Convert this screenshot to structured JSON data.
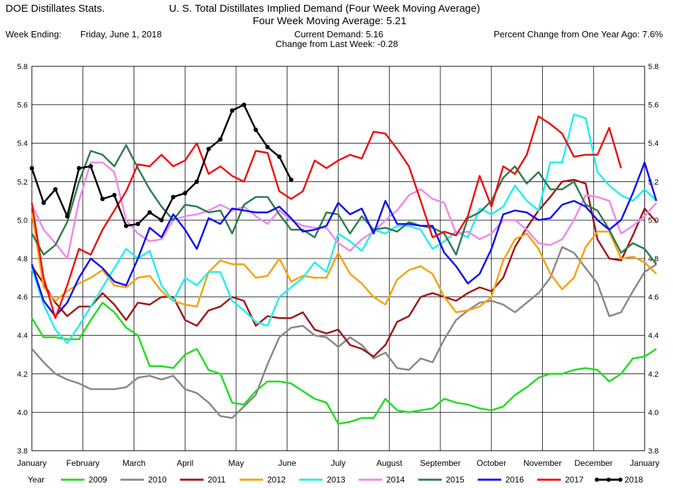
{
  "header": {
    "app_name": "DOE Distillates Stats.",
    "title_line1": "U. S. Total Distillates Implied Demand  (Four Week Moving Average)",
    "title_line2": "Four Week Moving Average:  5.21",
    "week_ending_label": "Week Ending:",
    "week_ending_value": "Friday, June 1, 2018",
    "current_demand": "Current Demand:  5.16",
    "change_last_week": "Change from Last Week: -0.28",
    "pct_change": "Percent Change from One Year Ago:  7.6%"
  },
  "chart_data": {
    "type": "line",
    "title": "U. S. Total Distillates Implied Demand  (Four Week Moving Average)",
    "xlabel": "",
    "ylabel": "",
    "ylim": [
      3.8,
      5.8
    ],
    "y_ticks": [
      "3.8",
      "4.0",
      "4.2",
      "4.4",
      "4.6",
      "4.8",
      "5.0",
      "5.2",
      "5.4",
      "5.6",
      "5.8"
    ],
    "x_ticks": [
      "January",
      "February",
      "March",
      "April",
      "May",
      "June",
      "July",
      "August",
      "September",
      "October",
      "November",
      "December",
      "January"
    ],
    "x_unit": "week of year (1-53)",
    "grid": true,
    "legend_title": "Year",
    "legend_position": "bottom",
    "series": [
      {
        "name": "2009",
        "color": "#22dd22",
        "values": [
          4.49,
          4.39,
          4.39,
          4.38,
          4.38,
          4.48,
          4.57,
          4.52,
          4.44,
          4.4,
          4.24,
          4.24,
          4.23,
          4.3,
          4.33,
          4.22,
          4.2,
          4.05,
          4.04,
          4.11,
          4.16,
          4.16,
          4.15,
          4.11,
          4.07,
          4.05,
          3.94,
          3.95,
          3.97,
          3.97,
          4.07,
          4.01,
          4.0,
          4.01,
          4.02,
          4.07,
          4.05,
          4.04,
          4.02,
          4.01,
          4.03,
          4.09,
          4.13,
          4.18,
          4.2,
          4.2,
          4.22,
          4.23,
          4.22,
          4.16,
          4.2,
          4.28,
          4.29,
          4.33
        ]
      },
      {
        "name": "2010",
        "color": "#888888",
        "values": [
          4.33,
          4.26,
          4.2,
          4.17,
          4.15,
          4.12,
          4.12,
          4.12,
          4.13,
          4.18,
          4.19,
          4.17,
          4.19,
          4.12,
          4.1,
          4.05,
          3.98,
          3.97,
          4.03,
          4.09,
          4.25,
          4.39,
          4.44,
          4.45,
          4.4,
          4.39,
          4.34,
          4.39,
          4.35,
          4.28,
          4.31,
          4.23,
          4.22,
          4.28,
          4.26,
          4.38,
          4.48,
          4.53,
          4.57,
          4.58,
          4.56,
          4.52,
          4.57,
          4.62,
          4.7,
          4.86,
          4.83,
          4.75,
          4.67,
          4.5,
          4.52,
          4.63,
          4.73,
          4.77
        ]
      },
      {
        "name": "2011",
        "color": "#a01818",
        "values": [
          4.76,
          4.67,
          4.57,
          4.5,
          4.55,
          4.55,
          4.62,
          4.56,
          4.48,
          4.57,
          4.56,
          4.6,
          4.6,
          4.48,
          4.45,
          4.53,
          4.55,
          4.6,
          4.58,
          4.45,
          4.5,
          4.49,
          4.49,
          4.52,
          4.43,
          4.41,
          4.43,
          4.35,
          4.33,
          4.29,
          4.35,
          4.47,
          4.5,
          4.6,
          4.62,
          4.6,
          4.58,
          4.62,
          4.65,
          4.63,
          4.7,
          4.86,
          4.96,
          5.05,
          5.12,
          5.2,
          5.21,
          5.19,
          4.9,
          4.8,
          4.79,
          4.92,
          5.06,
          4.99
        ]
      },
      {
        "name": "2012",
        "color": "#f5a20f",
        "values": [
          5.04,
          4.65,
          4.58,
          4.63,
          4.67,
          4.7,
          4.74,
          4.66,
          4.65,
          4.7,
          4.71,
          4.63,
          4.58,
          4.56,
          4.55,
          4.73,
          4.79,
          4.77,
          4.77,
          4.7,
          4.71,
          4.8,
          4.68,
          4.71,
          4.7,
          4.7,
          4.83,
          4.72,
          4.67,
          4.6,
          4.56,
          4.69,
          4.74,
          4.76,
          4.72,
          4.6,
          4.52,
          4.53,
          4.55,
          4.6,
          4.79,
          4.9,
          4.93,
          4.85,
          4.72,
          4.64,
          4.7,
          4.86,
          4.94,
          4.94,
          4.8,
          4.81,
          4.78,
          4.72
        ]
      },
      {
        "name": "2013",
        "color": "#22eeee",
        "values": [
          4.75,
          4.56,
          4.43,
          4.36,
          4.45,
          4.55,
          4.65,
          4.75,
          4.85,
          4.8,
          4.84,
          4.66,
          4.58,
          4.7,
          4.66,
          4.73,
          4.73,
          4.58,
          4.53,
          4.47,
          4.45,
          4.6,
          4.65,
          4.7,
          4.78,
          4.73,
          4.93,
          4.89,
          4.84,
          4.95,
          4.93,
          4.97,
          4.97,
          4.95,
          4.85,
          4.89,
          4.94,
          4.91,
          5.06,
          5.03,
          5.07,
          5.18,
          5.1,
          5.05,
          5.3,
          5.3,
          5.55,
          5.53,
          5.25,
          5.18,
          5.13,
          5.1,
          5.16,
          5.1
        ]
      },
      {
        "name": "2014",
        "color": "#ee88ee",
        "values": [
          5.08,
          4.95,
          4.88,
          4.8,
          5.1,
          5.3,
          5.3,
          5.25,
          5.0,
          4.93,
          4.89,
          4.9,
          5.0,
          5.02,
          5.03,
          5.05,
          5.08,
          5.05,
          5.07,
          5.02,
          4.98,
          5.05,
          5.0,
          4.97,
          4.96,
          4.96,
          4.88,
          4.84,
          4.9,
          4.94,
          5.0,
          5.05,
          5.13,
          5.16,
          5.11,
          5.09,
          4.93,
          4.94,
          4.9,
          4.93,
          5.0,
          5.0,
          4.95,
          4.88,
          4.87,
          4.9,
          5.0,
          5.13,
          5.12,
          5.1,
          4.93,
          4.97,
          5.02,
          5.09
        ]
      },
      {
        "name": "2015",
        "color": "#2e7d4f",
        "values": [
          4.93,
          4.82,
          4.87,
          4.99,
          5.2,
          5.36,
          5.34,
          5.28,
          5.39,
          5.27,
          5.16,
          5.07,
          5.0,
          5.08,
          5.07,
          5.04,
          5.05,
          4.93,
          5.08,
          5.12,
          5.12,
          5.03,
          4.95,
          4.95,
          4.91,
          5.04,
          5.03,
          4.93,
          5.02,
          4.95,
          4.96,
          4.94,
          4.99,
          4.97,
          4.96,
          4.93,
          4.82,
          5.01,
          5.04,
          5.1,
          5.22,
          5.28,
          5.19,
          5.25,
          5.16,
          5.16,
          5.2,
          5.08,
          5.05,
          4.95,
          4.83,
          4.88,
          4.85,
          4.77
        ]
      },
      {
        "name": "2016",
        "color": "#1111ee",
        "values": [
          4.77,
          4.58,
          4.5,
          4.57,
          4.7,
          4.8,
          4.75,
          4.68,
          4.66,
          4.8,
          4.96,
          4.91,
          5.03,
          4.95,
          4.85,
          5.01,
          4.98,
          5.06,
          5.05,
          5.04,
          5.04,
          5.07,
          5.01,
          4.94,
          4.95,
          4.97,
          5.09,
          5.03,
          5.06,
          4.93,
          5.1,
          4.98,
          4.98,
          4.97,
          4.97,
          4.83,
          4.76,
          4.67,
          4.72,
          4.85,
          5.03,
          5.05,
          5.04,
          5.0,
          5.01,
          5.08,
          5.1,
          5.07,
          5.0,
          4.95,
          5.0,
          5.14,
          5.3,
          5.1
        ]
      },
      {
        "name": "2017",
        "color": "#ee1111",
        "values": [
          5.09,
          4.7,
          4.49,
          4.66,
          4.85,
          4.82,
          4.95,
          5.05,
          5.15,
          5.29,
          5.28,
          5.34,
          5.28,
          5.31,
          5.4,
          5.24,
          5.28,
          5.23,
          5.2,
          5.36,
          5.35,
          5.15,
          5.11,
          5.15,
          5.31,
          5.27,
          5.31,
          5.34,
          5.32,
          5.46,
          5.45,
          5.37,
          5.28,
          5.1,
          4.91,
          4.94,
          4.92,
          5.02,
          5.23,
          5.07,
          5.28,
          5.24,
          5.34,
          5.54,
          5.5,
          5.45,
          5.33,
          5.34,
          5.34,
          5.48,
          5.27
        ]
      },
      {
        "name": "2018",
        "color": "#000000",
        "values": [
          5.27,
          5.09,
          5.16,
          5.02,
          5.27,
          5.28,
          5.11,
          5.13,
          4.97,
          4.98,
          5.04,
          5.0,
          5.12,
          5.14,
          5.2,
          5.37,
          5.42,
          5.57,
          5.6,
          5.47,
          5.38,
          5.33,
          5.21
        ]
      }
    ]
  }
}
